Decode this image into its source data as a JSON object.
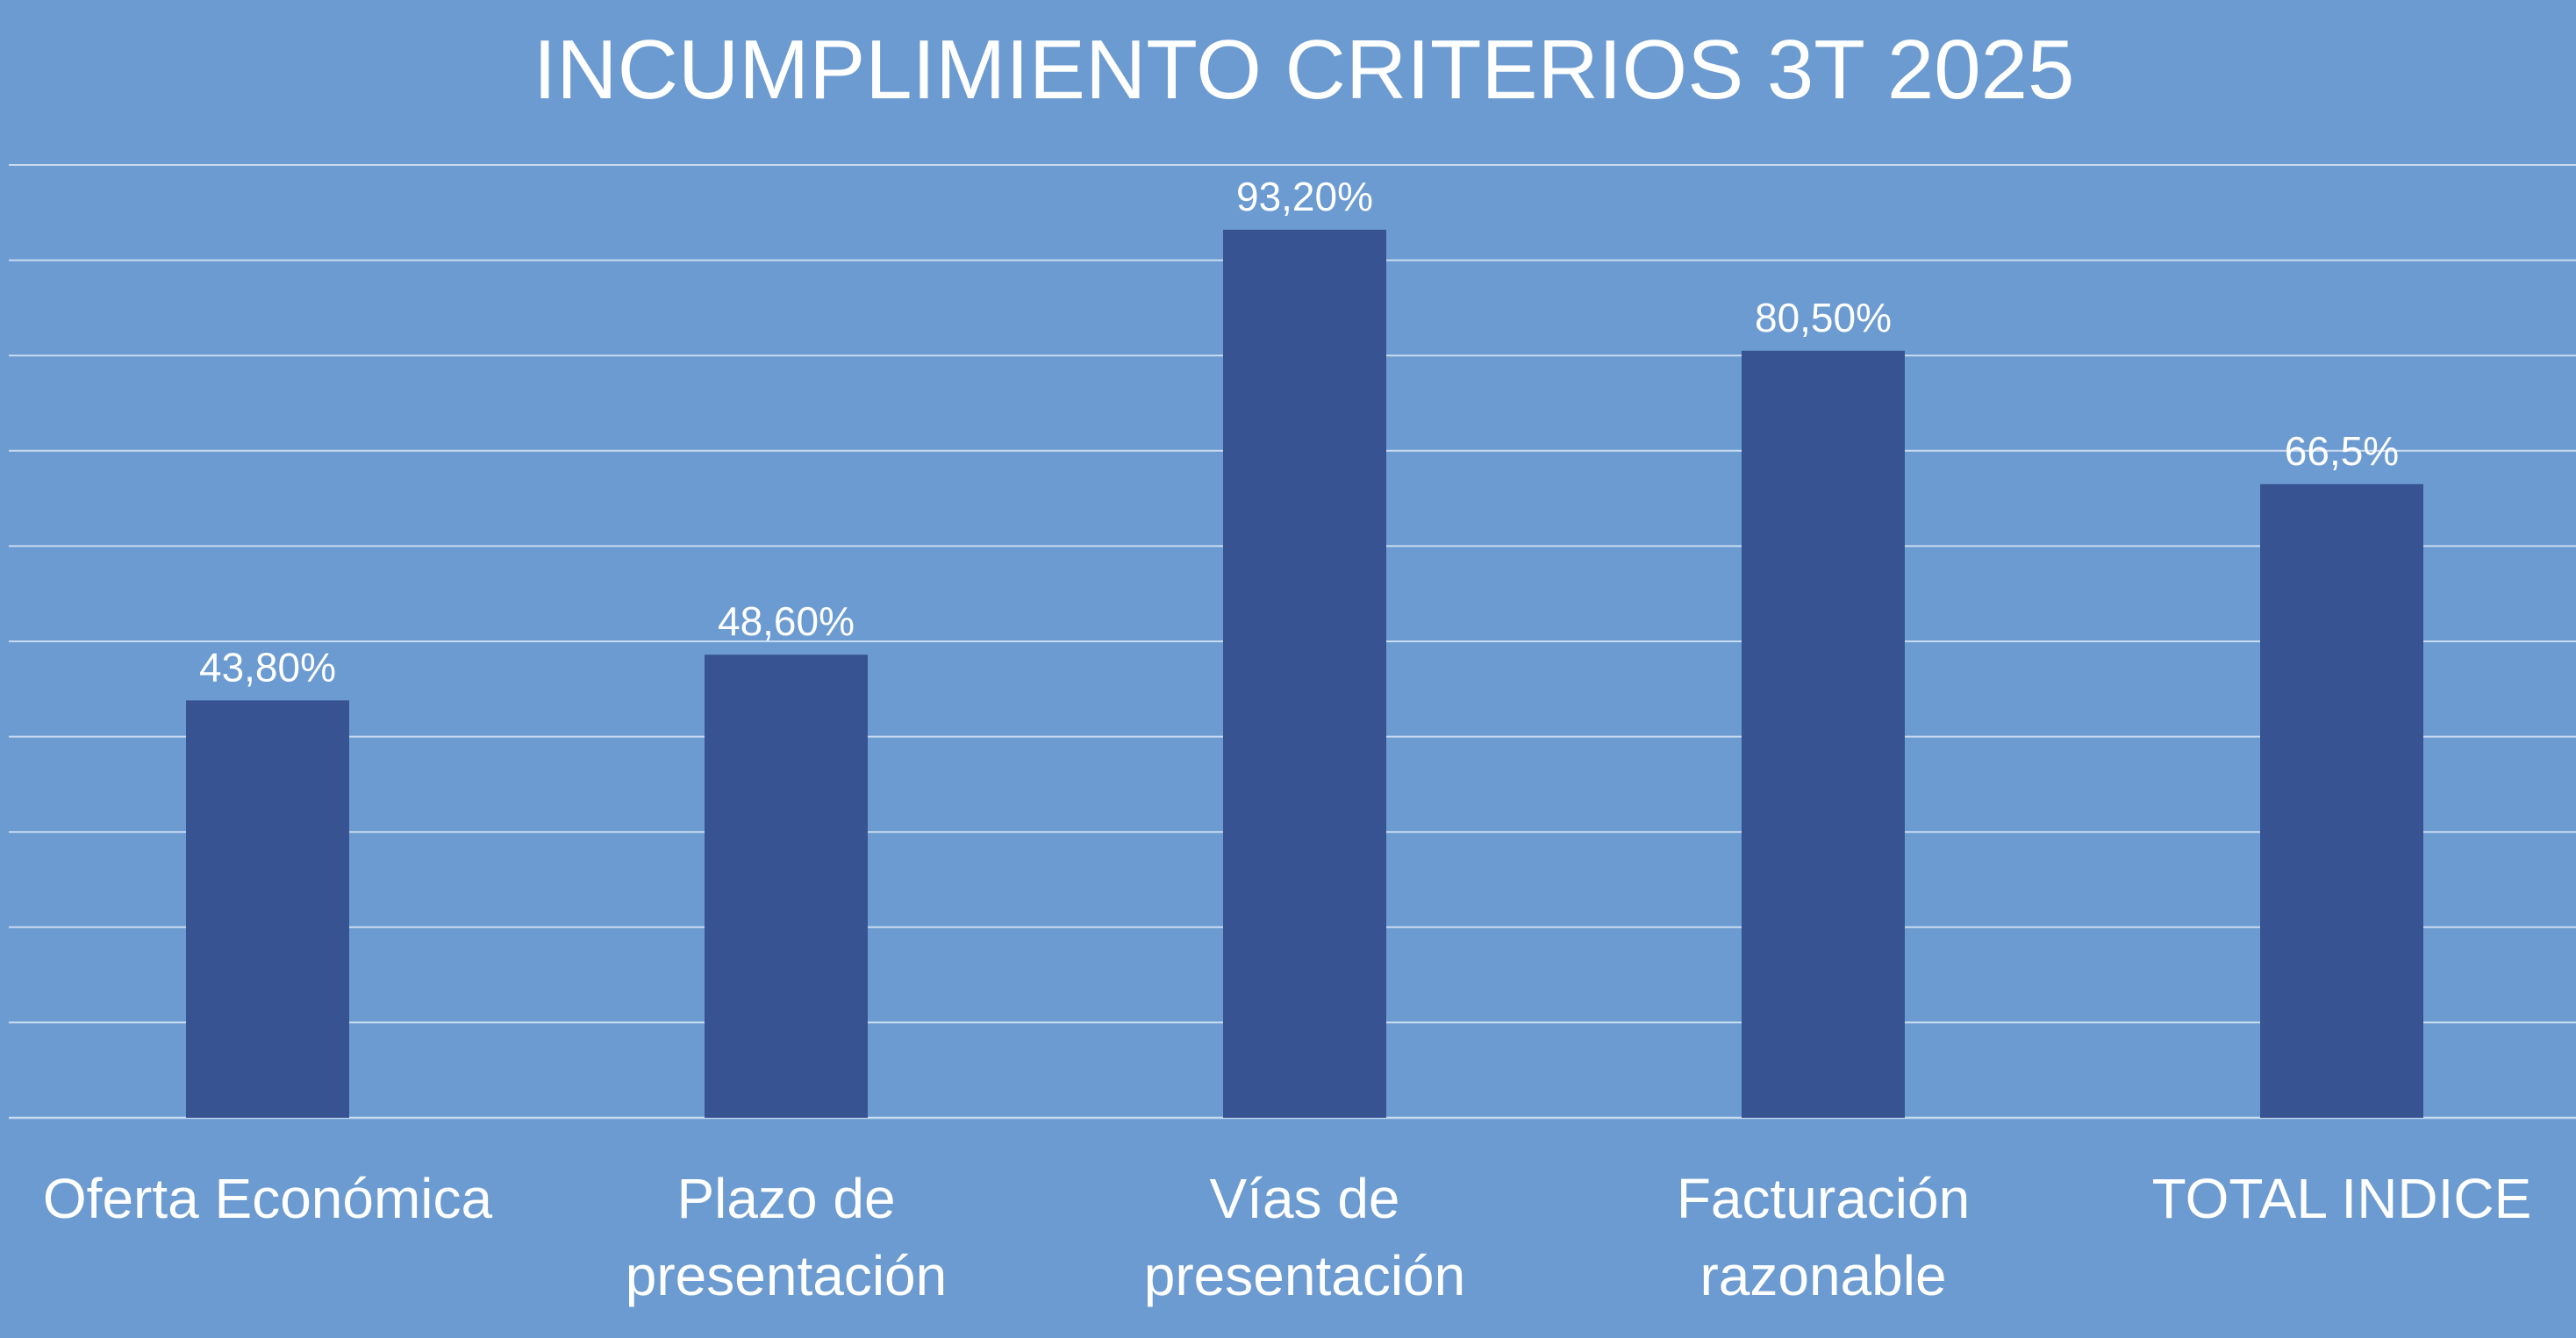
{
  "chart_data": {
    "type": "bar",
    "title": "INCUMPLIMIENTO CRITERIOS 3T 2025",
    "categories": [
      [
        "Oferta Económica"
      ],
      [
        "Plazo de",
        "presentación"
      ],
      [
        "Vías de",
        "presentación"
      ],
      [
        "Facturación",
        "razonable"
      ],
      [
        "TOTAL INDICE"
      ]
    ],
    "values": [
      43.8,
      48.6,
      93.2,
      80.5,
      66.5
    ],
    "data_labels": [
      "43,80%",
      "48,60%",
      "93,20%",
      "80,50%",
      "66,5%"
    ],
    "ylim": [
      0,
      100
    ],
    "grid": true,
    "legend": "none",
    "xlabel": "",
    "ylabel": ""
  },
  "colors": {
    "background": "#6b9bd0",
    "bar": "#375392",
    "grid": "#c9dbf0",
    "text": "#ffffff"
  }
}
